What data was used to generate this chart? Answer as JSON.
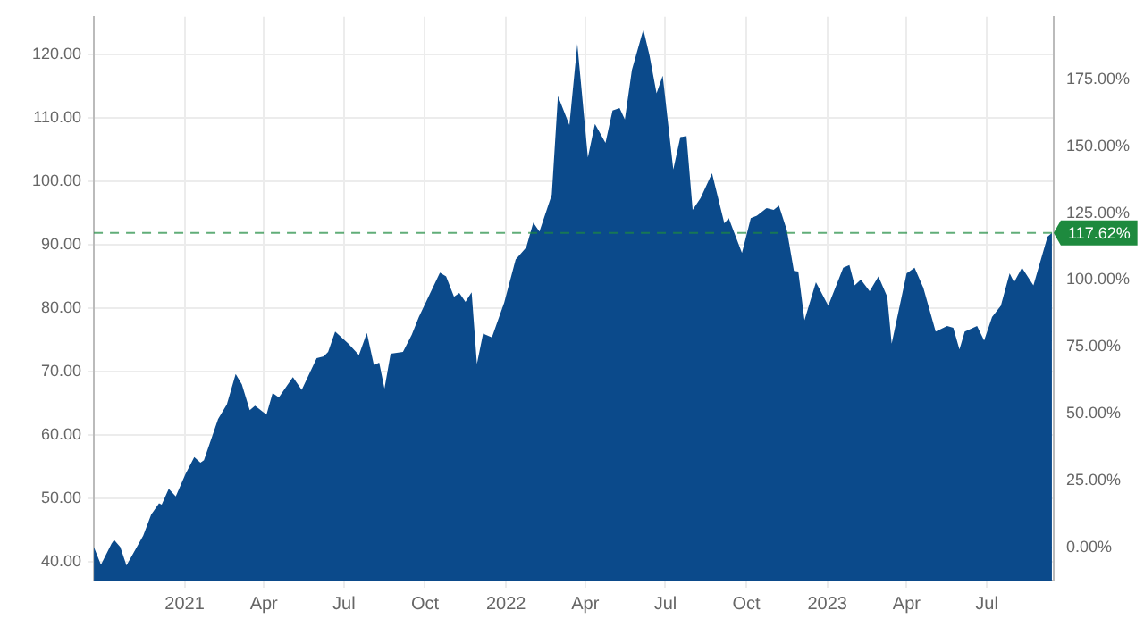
{
  "chart_data": {
    "type": "area",
    "x": [
      "2020-09-20",
      "2020-09-28",
      "2020-10-10",
      "2020-10-13",
      "2020-10-20",
      "2020-10-27",
      "2020-11-15",
      "2020-11-24",
      "2020-12-03",
      "2020-12-06",
      "2020-12-14",
      "2020-12-22",
      "2021-01-02",
      "2021-01-12",
      "2021-01-19",
      "2021-01-23",
      "2021-02-08",
      "2021-02-18",
      "2021-02-28",
      "2021-03-07",
      "2021-03-16",
      "2021-03-22",
      "2021-04-04",
      "2021-04-11",
      "2021-04-18",
      "2021-05-04",
      "2021-05-14",
      "2021-05-31",
      "2021-06-08",
      "2021-06-13",
      "2021-06-21",
      "2021-07-06",
      "2021-07-18",
      "2021-07-27",
      "2021-08-04",
      "2021-08-10",
      "2021-08-16",
      "2021-08-23",
      "2021-09-06",
      "2021-09-16",
      "2021-09-24",
      "2021-10-18",
      "2021-10-25",
      "2021-11-03",
      "2021-11-09",
      "2021-11-16",
      "2021-11-23",
      "2021-11-29",
      "2021-12-06",
      "2021-12-16",
      "2021-12-30",
      "2022-01-12",
      "2022-01-24",
      "2022-02-01",
      "2022-02-08",
      "2022-02-22",
      "2022-03-01",
      "2022-03-14",
      "2022-03-23",
      "2022-04-04",
      "2022-04-12",
      "2022-04-24",
      "2022-05-02",
      "2022-05-10",
      "2022-05-16",
      "2022-05-24",
      "2022-06-06",
      "2022-06-13",
      "2022-06-21",
      "2022-06-28",
      "2022-07-10",
      "2022-07-18",
      "2022-07-25",
      "2022-08-01",
      "2022-08-10",
      "2022-08-23",
      "2022-09-06",
      "2022-09-11",
      "2022-09-26",
      "2022-10-06",
      "2022-10-13",
      "2022-10-24",
      "2022-11-01",
      "2022-11-07",
      "2022-11-16",
      "2022-11-24",
      "2022-11-29",
      "2022-12-06",
      "2022-12-19",
      "2023-01-02",
      "2023-01-19",
      "2023-01-26",
      "2023-02-01",
      "2023-02-08",
      "2023-02-18",
      "2023-02-28",
      "2023-03-10",
      "2023-03-15",
      "2023-04-01",
      "2023-04-10",
      "2023-04-20",
      "2023-05-04",
      "2023-05-17",
      "2023-05-24",
      "2023-05-31",
      "2023-06-06",
      "2023-06-20",
      "2023-06-28",
      "2023-07-07",
      "2023-07-17",
      "2023-07-27",
      "2023-08-01",
      "2023-08-10",
      "2023-08-23",
      "2023-09-08",
      "2023-09-13"
    ],
    "series": [
      {
        "color": "#0b4a8b",
        "values": [
          42.3,
          39.5,
          42.8,
          43.4,
          42.3,
          39.4,
          44.1,
          47.4,
          49.2,
          49,
          51.5,
          50.3,
          53.8,
          56.5,
          55.6,
          56,
          62.5,
          64.8,
          69.6,
          68,
          63.9,
          64.6,
          63.2,
          66.6,
          65.9,
          69.1,
          67.1,
          72.1,
          72.4,
          73.1,
          76.3,
          74.4,
          72.6,
          76.1,
          71,
          71.4,
          67.3,
          72.8,
          73.1,
          75.8,
          78.6,
          85.6,
          85,
          81.8,
          82.4,
          81,
          82.5,
          71.2,
          76,
          75.4,
          80.9,
          87.7,
          89.6,
          93.5,
          92.1,
          97.9,
          113.5,
          108.9,
          121.7,
          103.8,
          109.1,
          106.1,
          111.2,
          111.6,
          109.8,
          117.6,
          124,
          119.9,
          113.9,
          116.7,
          101.9,
          107,
          107.2,
          95.5,
          97.4,
          101.3,
          93.4,
          94.2,
          88.7,
          94.2,
          94.6,
          95.8,
          95.5,
          96.2,
          92.3,
          85.9,
          85.8,
          78.1,
          84.1,
          80.4,
          86.4,
          86.8,
          83.6,
          84.5,
          82.7,
          85,
          81.8,
          74.4,
          85.5,
          86.4,
          83.2,
          76.3,
          77.2,
          76.9,
          73.5,
          76.3,
          77.2,
          74.9,
          78.6,
          80.4,
          85.5,
          84.1,
          86.4,
          83.6,
          91.3,
          91.9
        ]
      }
    ],
    "xlim": [
      "2020-09-20",
      "2023-09-15"
    ],
    "xticks": [
      {
        "value": "2021-01-01",
        "label": "2021"
      },
      {
        "value": "2021-04-01",
        "label": "Apr"
      },
      {
        "value": "2021-07-01",
        "label": "Jul"
      },
      {
        "value": "2021-10-01",
        "label": "Oct"
      },
      {
        "value": "2022-01-01",
        "label": "2022"
      },
      {
        "value": "2022-04-01",
        "label": "Apr"
      },
      {
        "value": "2022-07-01",
        "label": "Jul"
      },
      {
        "value": "2022-10-01",
        "label": "Oct"
      },
      {
        "value": "2023-01-01",
        "label": "2023"
      },
      {
        "value": "2023-04-01",
        "label": "Apr"
      },
      {
        "value": "2023-07-01",
        "label": "Jul"
      }
    ],
    "ylim": [
      37,
      126
    ],
    "yticks": [
      {
        "value": 40,
        "label": "40.00"
      },
      {
        "value": 50,
        "label": "50.00"
      },
      {
        "value": 60,
        "label": "60.00"
      },
      {
        "value": 70,
        "label": "70.00"
      },
      {
        "value": 80,
        "label": "80.00"
      },
      {
        "value": 90,
        "label": "90.00"
      },
      {
        "value": 100,
        "label": "100.00"
      },
      {
        "value": 110,
        "label": "110.00"
      },
      {
        "value": 120,
        "label": "120.00"
      }
    ],
    "y2lim": [
      -12.38,
      198.37
    ],
    "y2ticks": [
      {
        "value": 0,
        "label": "0.00%"
      },
      {
        "value": 25,
        "label": "25.00%"
      },
      {
        "value": 50,
        "label": "50.00%"
      },
      {
        "value": 75,
        "label": "75.00%"
      },
      {
        "value": 100,
        "label": "100.00%"
      },
      {
        "value": 125,
        "label": "125.00%"
      },
      {
        "value": 150,
        "label": "150.00%"
      },
      {
        "value": 175,
        "label": "175.00%"
      }
    ],
    "ref_lines": [
      {
        "axis": "y2",
        "value": 117.62,
        "label": "117.62%",
        "color": "#1e8a3e",
        "line_style": "dashed"
      }
    ],
    "grid": true,
    "legend": false
  }
}
